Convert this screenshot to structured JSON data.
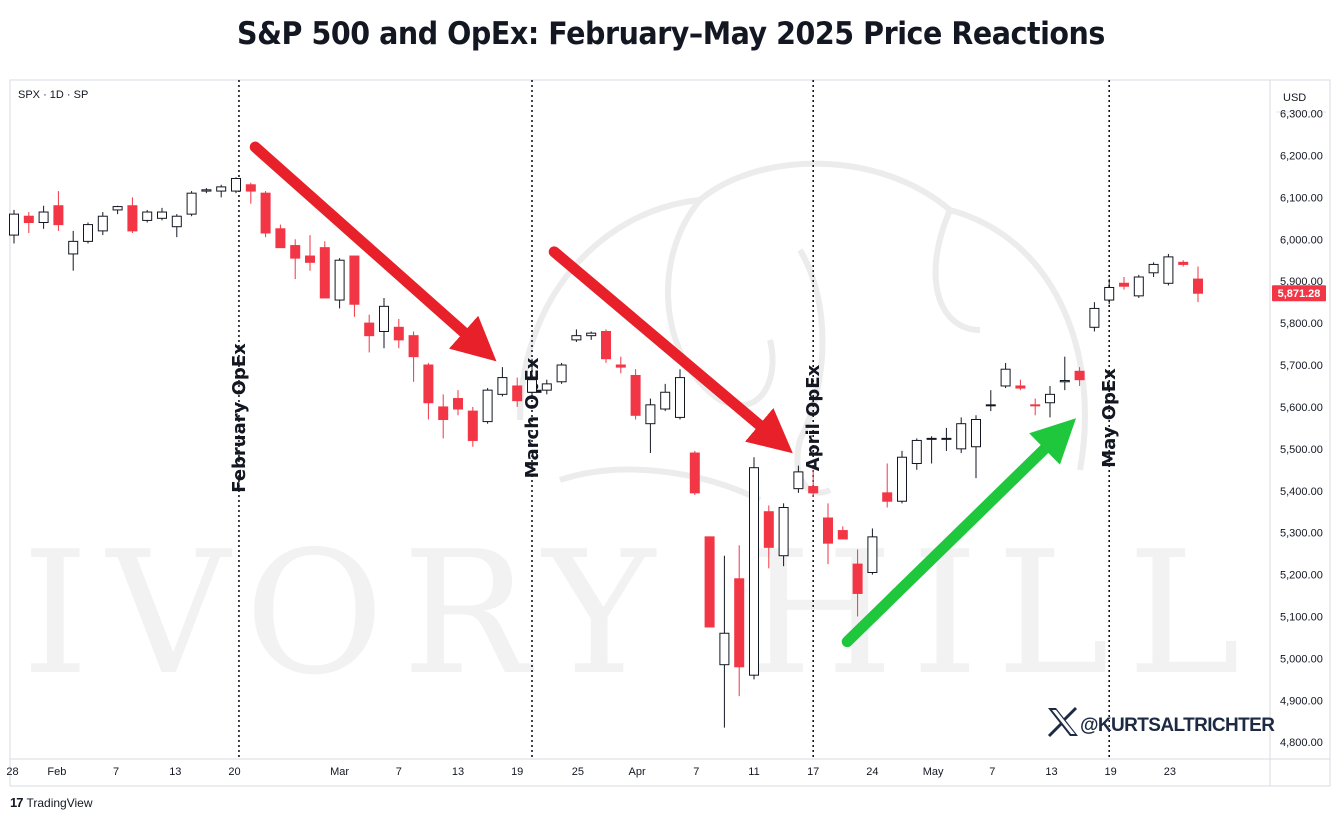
{
  "title": "S&P 500 and OpEx: February–May 2025 Price Reactions",
  "symbol_label": "SPX · 1D · SP",
  "currency": "USD",
  "watermark": "IVORY HILL",
  "handle": "@KURTSALTRICHTER",
  "x_logo_icon": "x-logo-icon",
  "tradingview_label": "TradingView",
  "colors": {
    "up": "#ffffff",
    "down": "#f23645",
    "red_arrow": "#e8202a",
    "green_arrow": "#1ec73b"
  },
  "chart_data": {
    "type": "candlestick",
    "ylim": [
      4760,
      6380
    ],
    "y_ticks": [
      4800,
      4900,
      5000,
      5100,
      5200,
      5300,
      5400,
      5500,
      5600,
      5700,
      5800,
      5900,
      6000,
      6100,
      6200,
      6300
    ],
    "y_tick_labels": [
      "4,800.00",
      "4,900.00",
      "5,000.00",
      "5,100.00",
      "5,200.00",
      "5,300.00",
      "5,400.00",
      "5,500.00",
      "5,600.00",
      "5,700.00",
      "5,800.00",
      "5,900.00",
      "6,000.00",
      "6,100.00",
      "6,200.00",
      "6,300.00"
    ],
    "last_price": 5871.28,
    "last_price_label": "5,871.28",
    "x_ticks": [
      {
        "label": "28",
        "index": -0.1
      },
      {
        "label": "Feb",
        "index": 2.9
      },
      {
        "label": "7",
        "index": 6.9
      },
      {
        "label": "13",
        "index": 10.9
      },
      {
        "label": "20",
        "index": 14.9
      },
      {
        "label": "Mar",
        "index": 22.0
      },
      {
        "label": "7",
        "index": 26.0
      },
      {
        "label": "13",
        "index": 30.0
      },
      {
        "label": "19",
        "index": 34.0
      },
      {
        "label": "25",
        "index": 38.1
      },
      {
        "label": "Apr",
        "index": 42.1
      },
      {
        "label": "7",
        "index": 46.1
      },
      {
        "label": "11",
        "index": 50.0
      },
      {
        "label": "17",
        "index": 54.0
      },
      {
        "label": "24",
        "index": 58.0
      },
      {
        "label": "May",
        "index": 62.1
      },
      {
        "label": "7",
        "index": 66.1
      },
      {
        "label": "13",
        "index": 70.1
      },
      {
        "label": "19",
        "index": 74.1
      },
      {
        "label": "23",
        "index": 78.1
      }
    ],
    "candles": [
      {
        "o": 6010,
        "h": 6070,
        "l": 5990,
        "c": 6060
      },
      {
        "o": 6055,
        "h": 6065,
        "l": 6015,
        "c": 6040
      },
      {
        "o": 6040,
        "h": 6080,
        "l": 6025,
        "c": 6065
      },
      {
        "o": 6080,
        "h": 6115,
        "l": 6020,
        "c": 6035
      },
      {
        "o": 5965,
        "h": 6020,
        "l": 5925,
        "c": 5995
      },
      {
        "o": 5995,
        "h": 6040,
        "l": 5990,
        "c": 6035
      },
      {
        "o": 6020,
        "h": 6065,
        "l": 6010,
        "c": 6055
      },
      {
        "o": 6070,
        "h": 6080,
        "l": 6060,
        "c": 6078
      },
      {
        "o": 6080,
        "h": 6100,
        "l": 6015,
        "c": 6020
      },
      {
        "o": 6045,
        "h": 6070,
        "l": 6040,
        "c": 6065
      },
      {
        "o": 6050,
        "h": 6075,
        "l": 6045,
        "c": 6065
      },
      {
        "o": 6030,
        "h": 6060,
        "l": 6005,
        "c": 6055
      },
      {
        "o": 6060,
        "h": 6115,
        "l": 6055,
        "c": 6110
      },
      {
        "o": 6115,
        "h": 6122,
        "l": 6110,
        "c": 6118
      },
      {
        "o": 6115,
        "h": 6130,
        "l": 6100,
        "c": 6125
      },
      {
        "o": 6115,
        "h": 6148,
        "l": 6110,
        "c": 6145
      },
      {
        "o": 6130,
        "h": 6135,
        "l": 6085,
        "c": 6115
      },
      {
        "o": 6110,
        "h": 6115,
        "l": 6005,
        "c": 6015
      },
      {
        "o": 6025,
        "h": 6035,
        "l": 5980,
        "c": 5980
      },
      {
        "o": 5985,
        "h": 6000,
        "l": 5905,
        "c": 5955
      },
      {
        "o": 5960,
        "h": 6010,
        "l": 5925,
        "c": 5945
      },
      {
        "o": 5980,
        "h": 5995,
        "l": 5860,
        "c": 5860
      },
      {
        "o": 5855,
        "h": 5955,
        "l": 5835,
        "c": 5950
      },
      {
        "o": 5960,
        "h": 5960,
        "l": 5815,
        "c": 5845
      },
      {
        "o": 5800,
        "h": 5820,
        "l": 5730,
        "c": 5770
      },
      {
        "o": 5780,
        "h": 5860,
        "l": 5740,
        "c": 5840
      },
      {
        "o": 5790,
        "h": 5810,
        "l": 5740,
        "c": 5760
      },
      {
        "o": 5770,
        "h": 5780,
        "l": 5660,
        "c": 5720
      },
      {
        "o": 5700,
        "h": 5705,
        "l": 5570,
        "c": 5610
      },
      {
        "o": 5600,
        "h": 5630,
        "l": 5525,
        "c": 5570
      },
      {
        "o": 5620,
        "h": 5640,
        "l": 5580,
        "c": 5595
      },
      {
        "o": 5590,
        "h": 5600,
        "l": 5505,
        "c": 5520
      },
      {
        "o": 5565,
        "h": 5645,
        "l": 5560,
        "c": 5640
      },
      {
        "o": 5630,
        "h": 5695,
        "l": 5625,
        "c": 5670
      },
      {
        "o": 5650,
        "h": 5670,
        "l": 5600,
        "c": 5615
      },
      {
        "o": 5635,
        "h": 5715,
        "l": 5620,
        "c": 5665
      },
      {
        "o": 5640,
        "h": 5665,
        "l": 5630,
        "c": 5655
      },
      {
        "o": 5660,
        "h": 5705,
        "l": 5655,
        "c": 5700
      },
      {
        "o": 5760,
        "h": 5785,
        "l": 5755,
        "c": 5770
      },
      {
        "o": 5770,
        "h": 5780,
        "l": 5760,
        "c": 5776
      },
      {
        "o": 5780,
        "h": 5785,
        "l": 5705,
        "c": 5715
      },
      {
        "o": 5700,
        "h": 5720,
        "l": 5680,
        "c": 5695
      },
      {
        "o": 5675,
        "h": 5690,
        "l": 5570,
        "c": 5580
      },
      {
        "o": 5560,
        "h": 5620,
        "l": 5490,
        "c": 5605
      },
      {
        "o": 5595,
        "h": 5655,
        "l": 5590,
        "c": 5635
      },
      {
        "o": 5575,
        "h": 5690,
        "l": 5570,
        "c": 5670
      },
      {
        "o": 5490,
        "h": 5495,
        "l": 5390,
        "c": 5395
      },
      {
        "o": 5290,
        "h": 5290,
        "l": 5075,
        "c": 5075
      },
      {
        "o": 4985,
        "h": 5245,
        "l": 4835,
        "c": 5060
      },
      {
        "o": 5190,
        "h": 5270,
        "l": 4910,
        "c": 4980
      },
      {
        "o": 4960,
        "h": 5480,
        "l": 4950,
        "c": 5455
      },
      {
        "o": 5350,
        "h": 5365,
        "l": 5215,
        "c": 5265
      },
      {
        "o": 5245,
        "h": 5370,
        "l": 5220,
        "c": 5360
      },
      {
        "o": 5405,
        "h": 5460,
        "l": 5395,
        "c": 5445
      },
      {
        "o": 5410,
        "h": 5450,
        "l": 5385,
        "c": 5395
      },
      {
        "o": 5335,
        "h": 5370,
        "l": 5225,
        "c": 5275
      },
      {
        "o": 5305,
        "h": 5315,
        "l": 5285,
        "c": 5285
      },
      {
        "o": 5225,
        "h": 5260,
        "l": 5100,
        "c": 5155
      },
      {
        "o": 5205,
        "h": 5310,
        "l": 5200,
        "c": 5290
      },
      {
        "o": 5395,
        "h": 5465,
        "l": 5360,
        "c": 5375
      },
      {
        "o": 5375,
        "h": 5495,
        "l": 5370,
        "c": 5480
      },
      {
        "o": 5465,
        "h": 5525,
        "l": 5450,
        "c": 5520
      },
      {
        "o": 5525,
        "h": 5530,
        "l": 5465,
        "c": 5525
      },
      {
        "o": 5525,
        "h": 5550,
        "l": 5495,
        "c": 5525
      },
      {
        "o": 5500,
        "h": 5575,
        "l": 5490,
        "c": 5560
      },
      {
        "o": 5505,
        "h": 5580,
        "l": 5430,
        "c": 5570
      },
      {
        "o": 5605,
        "h": 5640,
        "l": 5590,
        "c": 5605
      },
      {
        "o": 5650,
        "h": 5705,
        "l": 5645,
        "c": 5690
      },
      {
        "o": 5650,
        "h": 5665,
        "l": 5640,
        "c": 5645
      },
      {
        "o": 5605,
        "h": 5620,
        "l": 5580,
        "c": 5603
      },
      {
        "o": 5610,
        "h": 5650,
        "l": 5575,
        "c": 5630
      },
      {
        "o": 5660,
        "h": 5720,
        "l": 5640,
        "c": 5663
      },
      {
        "o": 5685,
        "h": 5695,
        "l": 5650,
        "c": 5665
      },
      {
        "o": 5790,
        "h": 5850,
        "l": 5780,
        "c": 5835
      },
      {
        "o": 5855,
        "h": 5905,
        "l": 5845,
        "c": 5885
      },
      {
        "o": 5895,
        "h": 5910,
        "l": 5880,
        "c": 5888
      },
      {
        "o": 5865,
        "h": 5915,
        "l": 5860,
        "c": 5910
      },
      {
        "o": 5920,
        "h": 5945,
        "l": 5910,
        "c": 5940
      },
      {
        "o": 5895,
        "h": 5965,
        "l": 5890,
        "c": 5958
      },
      {
        "o": 5945,
        "h": 5950,
        "l": 5935,
        "c": 5940
      },
      {
        "o": 5905,
        "h": 5935,
        "l": 5850,
        "c": 5871.28
      }
    ],
    "opex_lines": [
      {
        "label": "February OpEx",
        "index": 15.2
      },
      {
        "label": "March OpEx",
        "index": 35.0
      },
      {
        "label": "April OpEx",
        "index": 54.0
      },
      {
        "label": "May OpEx",
        "index": 74.0
      }
    ],
    "arrows": [
      {
        "color": "red",
        "from": {
          "index": 16.3,
          "value": 6220
        },
        "to": {
          "index": 31.6,
          "value": 5740
        }
      },
      {
        "color": "red",
        "from": {
          "index": 36.5,
          "value": 5970
        },
        "to": {
          "index": 51.6,
          "value": 5520
        }
      },
      {
        "color": "green",
        "from": {
          "index": 56.3,
          "value": 5040
        },
        "to": {
          "index": 70.8,
          "value": 5540
        }
      }
    ]
  }
}
